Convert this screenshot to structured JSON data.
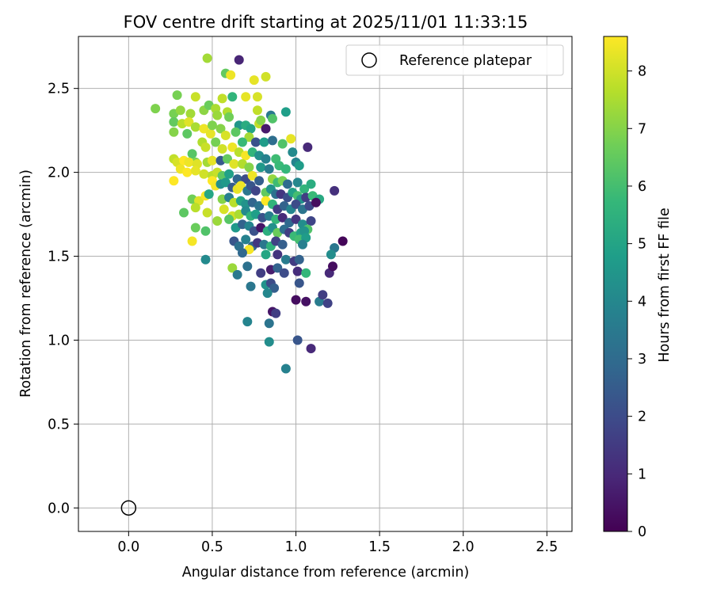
{
  "chart_data": {
    "type": "scatter",
    "title": "FOV centre drift starting at 2025/11/01 11:33:15",
    "xlabel": "Angular distance from reference (arcmin)",
    "ylabel": "Rotation from reference (arcmin)",
    "xlim": [
      -0.3,
      2.65
    ],
    "ylim": [
      -0.14,
      2.81
    ],
    "xticks": [
      0.0,
      0.5,
      1.0,
      1.5,
      2.0,
      2.5
    ],
    "yticks": [
      0.0,
      0.5,
      1.0,
      1.5,
      2.0,
      2.5
    ],
    "xtick_labels": [
      "0.0",
      "0.5",
      "1.0",
      "1.5",
      "2.0",
      "2.5"
    ],
    "ytick_labels": [
      "0.0",
      "0.5",
      "1.0",
      "1.5",
      "2.0",
      "2.5"
    ],
    "grid": true,
    "legend": {
      "position": "top-right",
      "entries": [
        {
          "label": "Reference platepar",
          "marker": "open-circle"
        }
      ]
    },
    "reference_point": {
      "x": 0.0,
      "y": 0.0
    },
    "colorbar": {
      "label": "Hours from first FF file",
      "min": 0,
      "max": 8.6,
      "ticks": [
        0,
        1,
        2,
        3,
        4,
        5,
        6,
        7,
        8
      ],
      "tick_labels": [
        "0",
        "1",
        "2",
        "3",
        "4",
        "5",
        "6",
        "7",
        "8"
      ],
      "colormap": [
        "#440154",
        "#482878",
        "#3e4989",
        "#31688e",
        "#26828e",
        "#1f9e89",
        "#35b779",
        "#6ece58",
        "#b5de2b",
        "#fde725"
      ]
    },
    "points": [
      [
        0.47,
        2.68,
        7.4
      ],
      [
        0.66,
        2.67,
        0.9
      ],
      [
        0.58,
        2.59,
        6.5
      ],
      [
        0.61,
        2.58,
        8.4
      ],
      [
        0.75,
        2.55,
        8.3
      ],
      [
        0.82,
        2.57,
        8.0
      ],
      [
        0.62,
        2.45,
        5.6
      ],
      [
        0.7,
        2.45,
        8.3
      ],
      [
        0.77,
        2.45,
        8.1
      ],
      [
        0.94,
        2.36,
        4.8
      ],
      [
        0.85,
        2.34,
        3.5
      ],
      [
        0.77,
        2.37,
        7.8
      ],
      [
        0.16,
        2.38,
        6.9
      ],
      [
        0.27,
        2.35,
        6.8
      ],
      [
        0.31,
        2.37,
        7.2
      ],
      [
        0.37,
        2.35,
        7.4
      ],
      [
        0.4,
        2.45,
        7.9
      ],
      [
        0.29,
        2.46,
        6.8
      ],
      [
        0.45,
        2.37,
        7.1
      ],
      [
        0.48,
        2.4,
        6.6
      ],
      [
        0.52,
        2.38,
        7.5
      ],
      [
        0.56,
        2.44,
        7.8
      ],
      [
        0.53,
        2.34,
        7.3
      ],
      [
        0.59,
        2.36,
        7.6
      ],
      [
        0.6,
        2.33,
        6.7
      ],
      [
        0.66,
        2.28,
        4.5
      ],
      [
        0.7,
        2.28,
        5.3
      ],
      [
        0.73,
        2.26,
        5.0
      ],
      [
        0.78,
        2.29,
        7.8
      ],
      [
        0.82,
        2.26,
        0.6
      ],
      [
        0.86,
        2.32,
        6.2
      ],
      [
        0.79,
        2.31,
        7.0
      ],
      [
        0.27,
        2.3,
        6.5
      ],
      [
        0.32,
        2.29,
        7.7
      ],
      [
        0.36,
        2.3,
        8.2
      ],
      [
        0.4,
        2.27,
        7.5
      ],
      [
        0.45,
        2.26,
        8.4
      ],
      [
        0.49,
        2.23,
        8.3
      ],
      [
        0.5,
        2.28,
        6.9
      ],
      [
        0.55,
        2.26,
        7.0
      ],
      [
        0.58,
        2.22,
        8.1
      ],
      [
        0.64,
        2.24,
        6.4
      ],
      [
        0.72,
        2.21,
        7.4
      ],
      [
        0.68,
        2.18,
        5.8
      ],
      [
        0.76,
        2.18,
        2.2
      ],
      [
        0.81,
        2.18,
        4.7
      ],
      [
        0.86,
        2.19,
        3.1
      ],
      [
        0.92,
        2.17,
        6.2
      ],
      [
        0.97,
        2.2,
        8.3
      ],
      [
        1.07,
        2.15,
        1.0
      ],
      [
        0.27,
        2.24,
        7.0
      ],
      [
        0.35,
        2.23,
        6.4
      ],
      [
        0.44,
        2.18,
        7.6
      ],
      [
        0.46,
        2.15,
        7.9
      ],
      [
        0.52,
        2.18,
        6.8
      ],
      [
        0.56,
        2.14,
        8.0
      ],
      [
        0.62,
        2.15,
        8.4
      ],
      [
        0.66,
        2.12,
        7.7
      ],
      [
        0.7,
        2.1,
        8.5
      ],
      [
        0.74,
        2.12,
        5.6
      ],
      [
        0.78,
        2.1,
        4.3
      ],
      [
        0.82,
        2.08,
        3.8
      ],
      [
        0.88,
        2.08,
        5.9
      ],
      [
        0.98,
        2.12,
        4.1
      ],
      [
        1.0,
        2.06,
        3.9
      ],
      [
        1.02,
        2.04,
        4.7
      ],
      [
        0.38,
        2.11,
        6.3
      ],
      [
        0.4,
        2.06,
        6.9
      ],
      [
        0.27,
        2.08,
        7.8
      ],
      [
        0.29,
        2.06,
        8.1
      ],
      [
        0.33,
        2.07,
        8.6
      ],
      [
        0.36,
        2.06,
        8.4
      ],
      [
        0.41,
        2.05,
        8.2
      ],
      [
        0.47,
        2.06,
        7.4
      ],
      [
        0.5,
        2.07,
        8.3
      ],
      [
        0.55,
        2.07,
        2.4
      ],
      [
        0.59,
        2.08,
        6.5
      ],
      [
        0.63,
        2.05,
        8.2
      ],
      [
        0.68,
        2.05,
        7.6
      ],
      [
        0.72,
        2.03,
        7.0
      ],
      [
        0.79,
        2.03,
        4.6
      ],
      [
        0.84,
        2.02,
        3.6
      ],
      [
        0.9,
        2.04,
        5.8
      ],
      [
        0.94,
        2.02,
        5.7
      ],
      [
        0.31,
        2.02,
        8.4
      ],
      [
        0.35,
        2.0,
        8.6
      ],
      [
        0.4,
        2.01,
        8.3
      ],
      [
        0.45,
        1.99,
        8.0
      ],
      [
        0.5,
        1.98,
        7.7
      ],
      [
        0.53,
        2.0,
        7.9
      ],
      [
        0.56,
        1.98,
        6.4
      ],
      [
        0.6,
        1.99,
        4.9
      ],
      [
        0.65,
        1.96,
        2.8
      ],
      [
        0.7,
        1.96,
        2.0
      ],
      [
        0.74,
        1.98,
        8.4
      ],
      [
        0.78,
        1.95,
        2.6
      ],
      [
        0.86,
        1.96,
        7.2
      ],
      [
        0.89,
        1.94,
        5.9
      ],
      [
        0.92,
        1.95,
        6.8
      ],
      [
        0.95,
        1.93,
        3.0
      ],
      [
        1.01,
        1.94,
        4.0
      ],
      [
        1.05,
        1.9,
        5.6
      ],
      [
        1.09,
        1.93,
        5.3
      ],
      [
        1.23,
        1.89,
        1.2
      ],
      [
        0.27,
        1.95,
        8.6
      ],
      [
        0.5,
        1.95,
        8.6
      ],
      [
        0.52,
        1.92,
        8.5
      ],
      [
        0.55,
        1.93,
        4.3
      ],
      [
        0.58,
        1.94,
        4.6
      ],
      [
        0.62,
        1.91,
        2.5
      ],
      [
        0.65,
        1.9,
        8.3
      ],
      [
        0.67,
        1.92,
        8.4
      ],
      [
        0.71,
        1.89,
        3.4
      ],
      [
        0.73,
        1.92,
        2.3
      ],
      [
        0.76,
        1.89,
        1.8
      ],
      [
        0.82,
        1.88,
        6.5
      ],
      [
        0.85,
        1.9,
        4.4
      ],
      [
        0.88,
        1.87,
        3.2
      ],
      [
        0.91,
        1.87,
        1.4
      ],
      [
        0.95,
        1.85,
        2.1
      ],
      [
        0.98,
        1.88,
        4.9
      ],
      [
        1.01,
        1.86,
        6.0
      ],
      [
        1.03,
        1.84,
        4.4
      ],
      [
        1.06,
        1.85,
        1.6
      ],
      [
        1.1,
        1.86,
        5.8
      ],
      [
        1.14,
        1.84,
        5.2
      ],
      [
        0.38,
        1.84,
        6.7
      ],
      [
        0.42,
        1.83,
        8.2
      ],
      [
        0.46,
        1.86,
        8.5
      ],
      [
        0.48,
        1.87,
        5.1
      ],
      [
        0.56,
        1.84,
        7.0
      ],
      [
        0.6,
        1.85,
        3.7
      ],
      [
        0.63,
        1.82,
        7.7
      ],
      [
        0.67,
        1.83,
        5.0
      ],
      [
        0.7,
        1.81,
        4.4
      ],
      [
        0.74,
        1.82,
        2.8
      ],
      [
        0.78,
        1.8,
        3.3
      ],
      [
        0.82,
        1.83,
        8.6
      ],
      [
        0.86,
        1.81,
        5.6
      ],
      [
        0.89,
        1.78,
        1.5
      ],
      [
        0.93,
        1.8,
        2.7
      ],
      [
        0.97,
        1.78,
        3.9
      ],
      [
        1.0,
        1.81,
        2.0
      ],
      [
        1.04,
        1.78,
        3.3
      ],
      [
        1.08,
        1.8,
        1.9
      ],
      [
        1.12,
        1.82,
        0.3
      ],
      [
        0.33,
        1.76,
        6.4
      ],
      [
        0.4,
        1.79,
        7.7
      ],
      [
        0.47,
        1.76,
        7.9
      ],
      [
        0.57,
        1.78,
        8.1
      ],
      [
        0.62,
        1.74,
        8.0
      ],
      [
        0.66,
        1.75,
        7.5
      ],
      [
        0.7,
        1.77,
        4.1
      ],
      [
        0.73,
        1.74,
        5.5
      ],
      [
        0.76,
        1.75,
        4.8
      ],
      [
        0.8,
        1.73,
        2.2
      ],
      [
        0.84,
        1.74,
        3.6
      ],
      [
        0.88,
        1.72,
        5.7
      ],
      [
        0.92,
        1.73,
        1.0
      ],
      [
        0.96,
        1.7,
        2.9
      ],
      [
        1.0,
        1.72,
        1.3
      ],
      [
        1.04,
        1.69,
        4.2
      ],
      [
        1.09,
        1.71,
        1.8
      ],
      [
        0.4,
        1.67,
        6.6
      ],
      [
        0.53,
        1.71,
        7.3
      ],
      [
        0.46,
        1.65,
        6.2
      ],
      [
        0.6,
        1.72,
        6.3
      ],
      [
        0.64,
        1.67,
        4.6
      ],
      [
        0.68,
        1.69,
        2.7
      ],
      [
        0.72,
        1.68,
        3.9
      ],
      [
        0.75,
        1.65,
        2.2
      ],
      [
        0.79,
        1.67,
        0.5
      ],
      [
        0.83,
        1.65,
        5.4
      ],
      [
        0.86,
        1.67,
        4.3
      ],
      [
        0.89,
        1.64,
        6.6
      ],
      [
        0.93,
        1.66,
        3.1
      ],
      [
        0.96,
        1.64,
        1.6
      ],
      [
        0.99,
        1.62,
        5.8
      ],
      [
        1.03,
        1.64,
        4.9
      ],
      [
        1.07,
        1.66,
        6.2
      ],
      [
        1.05,
        1.65,
        4.4
      ],
      [
        0.38,
        1.59,
        8.5
      ],
      [
        0.63,
        1.59,
        2.3
      ],
      [
        0.66,
        1.56,
        3.2
      ],
      [
        0.7,
        1.6,
        3.8
      ],
      [
        0.74,
        1.56,
        2.8
      ],
      [
        0.77,
        1.58,
        1.4
      ],
      [
        0.81,
        1.57,
        3.4
      ],
      [
        0.85,
        1.56,
        5.5
      ],
      [
        0.88,
        1.59,
        1.7
      ],
      [
        0.92,
        1.57,
        2.6
      ],
      [
        1.02,
        1.6,
        6.0
      ],
      [
        1.06,
        1.61,
        4.7
      ],
      [
        1.04,
        1.57,
        3.7
      ],
      [
        1.23,
        1.55,
        3.4
      ],
      [
        1.21,
        1.51,
        4.2
      ],
      [
        1.28,
        1.59,
        0.1
      ],
      [
        0.72,
        1.54,
        8.5
      ],
      [
        0.46,
        1.48,
        4.1
      ],
      [
        0.68,
        1.52,
        2.9
      ],
      [
        0.82,
        1.51,
        5.1
      ],
      [
        0.89,
        1.51,
        1.3
      ],
      [
        0.94,
        1.48,
        3.6
      ],
      [
        0.99,
        1.47,
        1.5
      ],
      [
        1.02,
        1.48,
        2.7
      ],
      [
        0.62,
        1.43,
        7.3
      ],
      [
        0.65,
        1.39,
        3.5
      ],
      [
        0.71,
        1.44,
        3.2
      ],
      [
        0.79,
        1.4,
        1.6
      ],
      [
        0.85,
        1.42,
        0.7
      ],
      [
        0.89,
        1.43,
        2.7
      ],
      [
        0.93,
        1.4,
        2.0
      ],
      [
        1.01,
        1.41,
        1.1
      ],
      [
        1.06,
        1.4,
        5.7
      ],
      [
        1.2,
        1.4,
        1.0
      ],
      [
        1.22,
        1.44,
        0.3
      ],
      [
        0.73,
        1.32,
        3.4
      ],
      [
        0.82,
        1.33,
        4.4
      ],
      [
        0.85,
        1.34,
        2.0
      ],
      [
        0.87,
        1.31,
        2.6
      ],
      [
        0.83,
        1.28,
        4.0
      ],
      [
        1.02,
        1.34,
        2.3
      ],
      [
        1.0,
        1.24,
        0.3
      ],
      [
        1.06,
        1.23,
        0.4
      ],
      [
        1.14,
        1.23,
        3.6
      ],
      [
        1.16,
        1.27,
        1.6
      ],
      [
        1.19,
        1.22,
        1.7
      ],
      [
        0.86,
        1.17,
        0.5
      ],
      [
        0.88,
        1.16,
        1.6
      ],
      [
        0.71,
        1.11,
        3.9
      ],
      [
        0.84,
        1.1,
        3.3
      ],
      [
        0.84,
        0.99,
        4.2
      ],
      [
        1.01,
        1.0,
        2.3
      ],
      [
        1.09,
        0.95,
        1.0
      ],
      [
        0.94,
        0.83,
        3.8
      ]
    ]
  }
}
